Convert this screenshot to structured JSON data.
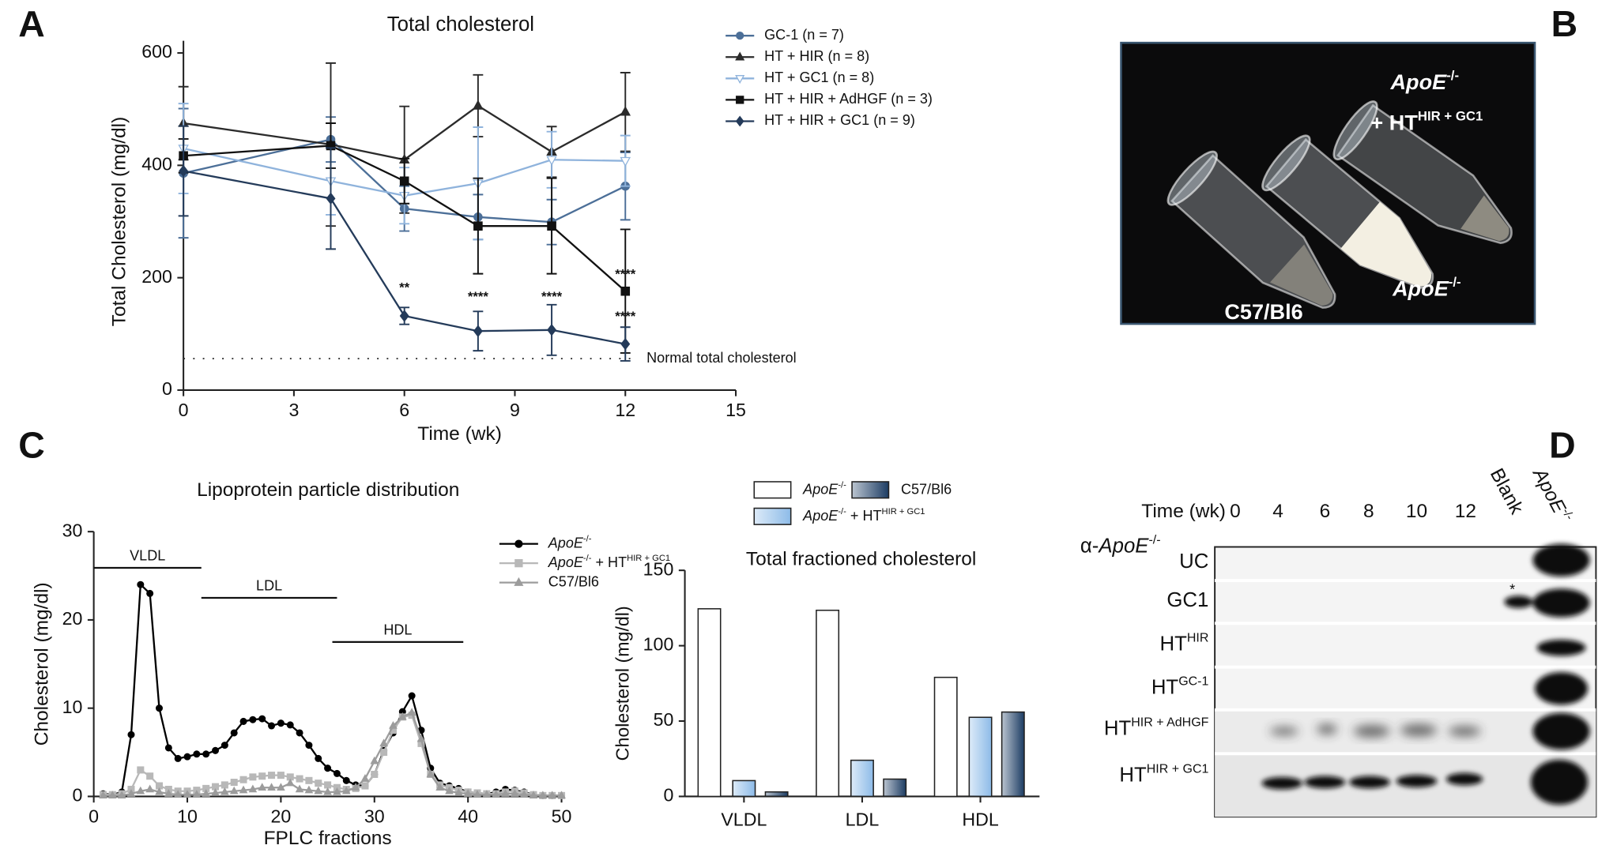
{
  "panels": [
    "A",
    "B",
    "C",
    "D"
  ],
  "chart_data": [
    {
      "type": "line",
      "title": "Total cholesterol",
      "xlabel": "Time (wk)",
      "ylabel": "Total Cholesterol (mg/dl)",
      "x": [
        0,
        4,
        6,
        8,
        10,
        12
      ],
      "xlim": [
        0,
        15
      ],
      "xticks": [
        0,
        3,
        6,
        9,
        12,
        15
      ],
      "ylim": [
        0,
        600
      ],
      "yticks": [
        0,
        200,
        400,
        600
      ],
      "series": [
        {
          "name": "GC-1 (n = 7)",
          "color": "#4c6f98",
          "marker": "circle",
          "values": [
            386,
            446,
            323,
            308,
            299,
            363
          ],
          "errors": [
            115,
            40,
            40,
            40,
            40,
            60
          ]
        },
        {
          "name": "HT + HIR  (n = 8)",
          "color": "#2b2b2b",
          "marker": "triangle",
          "values": [
            475,
            437,
            410,
            506,
            424,
            495
          ],
          "errors": [
            65,
            145,
            95,
            55,
            45,
            70
          ]
        },
        {
          "name": "HT + GC1 (n = 8)",
          "color": "#8fb3dc",
          "marker": "triangle-down",
          "values": [
            430,
            372,
            346,
            368,
            410,
            408
          ],
          "errors": [
            80,
            60,
            50,
            100,
            50,
            45
          ]
        },
        {
          "name": "HT + HIR + AdHGF (n = 3)",
          "color": "#111111",
          "marker": "square",
          "values": [
            417,
            435,
            372,
            292,
            292,
            176
          ],
          "errors": [
            30,
            40,
            40,
            85,
            85,
            110
          ]
        },
        {
          "name": "HT + HIR + GC1 (n = 9)",
          "color": "#243b5a",
          "marker": "diamond",
          "values": [
            390,
            341,
            132,
            105,
            107,
            82
          ],
          "errors": [
            80,
            90,
            15,
            35,
            45,
            30
          ]
        }
      ],
      "reference": {
        "value": 56,
        "label": "Normal total cholesterol"
      },
      "annotations": [
        {
          "text": "**",
          "x": 6,
          "y": 181,
          "color": "#1f3a5c"
        },
        {
          "text": "****",
          "x": 8,
          "y": 165,
          "color": "#1f3a5c"
        },
        {
          "text": "****",
          "x": 10,
          "y": 165,
          "color": "#1f3a5c"
        },
        {
          "text": "****",
          "x": 12,
          "y": 205,
          "color": "#111111"
        },
        {
          "text": "****",
          "x": 12,
          "y": 130,
          "color": "#1f3a5c"
        }
      ]
    },
    {
      "type": "line",
      "title": "Lipoprotein particle distribution",
      "xlabel": "FPLC fractions",
      "ylabel": "Cholesterol (mg/dl)",
      "x": [
        1,
        2,
        3,
        4,
        5,
        6,
        7,
        8,
        9,
        10,
        11,
        12,
        13,
        14,
        15,
        16,
        17,
        18,
        19,
        20,
        21,
        22,
        23,
        24,
        25,
        26,
        27,
        28,
        29,
        30,
        31,
        32,
        33,
        34,
        35,
        36,
        37,
        38,
        39,
        40,
        41,
        42,
        43,
        44,
        45,
        46,
        47,
        48,
        49,
        50
      ],
      "xlim": [
        0,
        50
      ],
      "xticks": [
        0,
        10,
        20,
        30,
        40,
        50
      ],
      "ylim": [
        0,
        30
      ],
      "yticks": [
        0,
        10,
        20,
        30
      ],
      "series": [
        {
          "name": [
            [
              "ApoE",
              "i"
            ],
            [
              "-/-",
              "sup"
            ]
          ],
          "color": "#000000",
          "marker": "circle",
          "values": [
            0.3,
            0.2,
            0.5,
            7,
            24,
            23,
            10,
            5.5,
            4.3,
            4.5,
            4.8,
            4.8,
            5.2,
            5.8,
            7.2,
            8.5,
            8.7,
            8.8,
            8,
            8.3,
            8.1,
            7.2,
            5.8,
            4.3,
            3.2,
            2.6,
            1.8,
            1.3,
            1.2,
            2.5,
            5.2,
            7.2,
            9.6,
            11.4,
            7.5,
            3.2,
            1.5,
            1.2,
            0.9,
            0.5,
            0.4,
            0.3,
            0.5,
            0.8,
            0.7,
            0.5,
            0.2,
            0.1,
            0.1,
            0.1
          ]
        },
        {
          "name": [
            [
              "ApoE",
              "i"
            ],
            [
              "-/-",
              "sup"
            ],
            [
              "  +  HT",
              ""
            ],
            [
              "HIR + GC1",
              "sup"
            ]
          ],
          "color": "#b8b8b8",
          "marker": "square",
          "values": [
            0.2,
            0.2,
            0.3,
            0.8,
            3,
            2.3,
            1.2,
            0.8,
            0.6,
            0.6,
            0.7,
            0.9,
            1.1,
            1.3,
            1.6,
            1.9,
            2.2,
            2.3,
            2.4,
            2.4,
            2.2,
            2,
            1.8,
            1.5,
            1.3,
            1,
            0.8,
            0.9,
            1.2,
            2.5,
            5,
            7.5,
            9,
            9.2,
            6,
            2.5,
            1.3,
            1,
            0.7,
            0.5,
            0.4,
            0.3,
            0.3,
            0.5,
            0.6,
            0.4,
            0.2,
            0.1,
            0.1,
            0.1
          ]
        },
        {
          "name": [
            [
              "C57/Bl6",
              ""
            ]
          ],
          "color": "#9c9c9c",
          "marker": "triangle",
          "values": [
            0.1,
            0.1,
            0.1,
            0.3,
            0.6,
            0.8,
            0.5,
            0.3,
            0.2,
            0.2,
            0.2,
            0.3,
            0.4,
            0.5,
            0.6,
            0.7,
            0.8,
            1,
            1,
            1,
            1.5,
            0.8,
            0.7,
            0.6,
            0.5,
            0.5,
            0.6,
            1,
            2,
            4,
            6,
            8,
            9,
            9.5,
            6.5,
            2.5,
            1,
            0.6,
            0.4,
            0.3,
            0.2,
            0.2,
            0.2,
            0.3,
            0.3,
            0.2,
            0.1,
            0.1,
            0.1,
            0.1
          ]
        }
      ],
      "regions": [
        {
          "label": "VLDL",
          "from": 0,
          "to": 11.5,
          "y": 25.9
        },
        {
          "label": "LDL",
          "from": 11.5,
          "to": 26,
          "y": 22.5
        },
        {
          "label": "HDL",
          "from": 25.5,
          "to": 39.5,
          "y": 17.5
        }
      ]
    },
    {
      "type": "bar",
      "title": "Total fractioned cholesterol",
      "ylabel": "Cholesterol (mg/dl)",
      "categories": [
        "VLDL",
        "LDL",
        "HDL"
      ],
      "ylim": [
        0,
        150
      ],
      "yticks": [
        0,
        50,
        100,
        150
      ],
      "series": [
        {
          "name": [
            [
              "ApoE",
              "i"
            ],
            [
              "-/-",
              "sup"
            ]
          ],
          "color": "#ffffff",
          "gradient": false,
          "values": [
            124.5,
            123.5,
            79
          ]
        },
        {
          "name": [
            [
              "ApoE",
              "i"
            ],
            [
              "-/-",
              "sup"
            ],
            [
              "  +  HT",
              ""
            ],
            [
              "HIR + GC1",
              "sup"
            ]
          ],
          "color": "#8dbbe8",
          "gradient": true,
          "values": [
            10.5,
            24,
            52.5
          ]
        },
        {
          "name": [
            [
              "C57/Bl6",
              ""
            ]
          ],
          "color": "#1c3c63",
          "gradient": true,
          "values": [
            3,
            11.5,
            56
          ]
        }
      ]
    }
  ],
  "photo": {
    "labels": [
      [
        [
          "ApoE",
          "i"
        ],
        [
          "-/-",
          "sup"
        ]
      ],
      [
        [
          "+ HT",
          ""
        ],
        [
          "HIR + GC1",
          "sup"
        ]
      ],
      [
        [
          "ApoE",
          "i"
        ],
        [
          "-/-",
          "sup"
        ]
      ],
      [
        [
          "C57/Bl6",
          ""
        ]
      ]
    ]
  },
  "blot": {
    "time_label": "Time (wk)",
    "lanes": [
      0,
      4,
      6,
      8,
      10,
      12
    ],
    "controls": [
      [
        [
          "Blank",
          ""
        ]
      ],
      [
        [
          "ApoE",
          "i"
        ],
        [
          "-/-",
          "sup"
        ]
      ]
    ],
    "antibody": [
      [
        "α-",
        ""
      ],
      [
        "ApoE",
        "i"
      ],
      [
        "-/-",
        "sup"
      ]
    ],
    "rows": [
      [
        [
          "UC",
          ""
        ]
      ],
      [
        [
          "GC1",
          ""
        ]
      ],
      [
        [
          "HT",
          ""
        ],
        [
          "HIR",
          "sup"
        ]
      ],
      [
        [
          "HT",
          ""
        ],
        [
          "GC-1",
          "sup"
        ]
      ],
      [
        [
          "HT",
          ""
        ],
        [
          "HIR + AdHGF",
          "sup"
        ]
      ],
      [
        [
          "HT",
          ""
        ],
        [
          "HIR + GC1",
          "sup"
        ]
      ]
    ],
    "marker": "*"
  }
}
